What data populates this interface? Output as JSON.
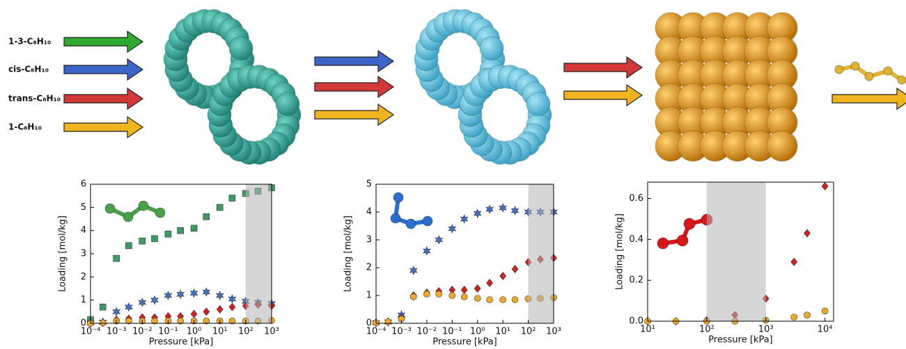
{
  "reactants": [
    "1-3-C₈H₁₀",
    "cis-C₈H₁₀",
    "trans-C₈H₁₀",
    "1-C₈H₁₀"
  ],
  "chart_data": [
    {
      "type": "scatter",
      "xscale": "log",
      "xlabel": "Pressure [kPa]",
      "ylabel": "Loading [mol/kg]",
      "xlim": [
        0.0001,
        1000
      ],
      "ylim": [
        0,
        6
      ],
      "xticks": [
        {
          "value": 0.0001,
          "label": "10⁻⁴"
        },
        {
          "value": 0.001,
          "label": "10⁻³"
        },
        {
          "value": 0.01,
          "label": "10⁻²"
        },
        {
          "value": 0.1,
          "label": "10⁻¹"
        },
        {
          "value": 1,
          "label": "10⁰"
        },
        {
          "value": 10,
          "label": "10¹"
        },
        {
          "value": 100,
          "label": "10²"
        },
        {
          "value": 1000,
          "label": "10³"
        }
      ],
      "yticks": [
        0,
        1,
        2,
        3,
        4,
        5,
        6
      ],
      "shaded_region": [
        100,
        1000
      ],
      "x": [
        0.0001,
        0.0003,
        0.001,
        0.003,
        0.01,
        0.03,
        0.1,
        0.3,
        1,
        3,
        10,
        30,
        100,
        300,
        1000
      ],
      "series": [
        {
          "marker": "square",
          "color": "#3d9b63",
          "values": [
            0.15,
            0.7,
            2.8,
            3.35,
            3.55,
            3.65,
            3.85,
            4.0,
            4.1,
            4.6,
            5.0,
            5.4,
            5.6,
            5.7,
            5.85
          ]
        },
        {
          "marker": "star",
          "color": "#4470c8",
          "values": [
            0.02,
            0.05,
            0.5,
            0.7,
            0.9,
            1.0,
            1.2,
            1.25,
            1.3,
            1.35,
            1.2,
            1.05,
            0.95,
            0.9,
            0.85
          ]
        },
        {
          "marker": "diamond",
          "color": "#d42020",
          "values": [
            0.0,
            0.02,
            0.15,
            0.2,
            0.25,
            0.25,
            0.3,
            0.3,
            0.4,
            0.5,
            0.6,
            0.7,
            0.75,
            0.8,
            0.75
          ]
        },
        {
          "marker": "circle",
          "color": "#f2a92a",
          "values": [
            0.0,
            0.02,
            0.1,
            0.1,
            0.1,
            0.1,
            0.1,
            0.1,
            0.1,
            0.1,
            0.1,
            0.1,
            0.1,
            0.1,
            0.12
          ]
        }
      ]
    },
    {
      "type": "scatter",
      "xscale": "log",
      "xlabel": "Pressure [kPa]",
      "ylabel": "Loading [mol/kg]",
      "xlim": [
        0.0001,
        1000
      ],
      "ylim": [
        0,
        5
      ],
      "xticks": [
        {
          "value": 0.0001,
          "label": "10⁻⁴"
        },
        {
          "value": 0.001,
          "label": "10⁻³"
        },
        {
          "value": 0.01,
          "label": "10⁻²"
        },
        {
          "value": 0.1,
          "label": "10⁻¹"
        },
        {
          "value": 1,
          "label": "10⁰"
        },
        {
          "value": 10,
          "label": "10¹"
        },
        {
          "value": 100,
          "label": "10²"
        },
        {
          "value": 1000,
          "label": "10³"
        }
      ],
      "yticks": [
        0,
        1,
        2,
        3,
        4,
        5
      ],
      "shaded_region": [
        100,
        1000
      ],
      "x": [
        0.0001,
        0.0003,
        0.001,
        0.003,
        0.01,
        0.03,
        0.1,
        0.3,
        1,
        3,
        10,
        30,
        100,
        300,
        1000
      ],
      "series": [
        {
          "marker": "star",
          "color": "#4470c8",
          "values": [
            0.02,
            0.05,
            0.3,
            1.9,
            2.6,
            3.0,
            3.4,
            3.75,
            3.95,
            4.1,
            4.15,
            4.05,
            4.0,
            4.0,
            4.0
          ]
        },
        {
          "marker": "diamond",
          "color": "#d42020",
          "values": [
            0.02,
            0.05,
            0.2,
            1.0,
            1.1,
            1.15,
            1.2,
            1.2,
            1.25,
            1.45,
            1.7,
            1.95,
            2.2,
            2.3,
            2.35
          ]
        },
        {
          "marker": "circle",
          "color": "#f2a92a",
          "values": [
            0.02,
            0.05,
            0.15,
            0.95,
            1.05,
            1.05,
            1.0,
            0.95,
            0.9,
            0.85,
            0.85,
            0.85,
            0.88,
            0.9,
            0.92
          ]
        }
      ]
    },
    {
      "type": "scatter",
      "xscale": "log",
      "xlabel": "Pressure [kPa]",
      "ylabel": "Loading [mol/kg]",
      "xlim": [
        10,
        14000
      ],
      "ylim": [
        0,
        0.68
      ],
      "xticks": [
        {
          "value": 10,
          "label": "10¹"
        },
        {
          "value": 100,
          "label": "10²"
        },
        {
          "value": 1000,
          "label": "10³"
        },
        {
          "value": 10000,
          "label": "10⁴"
        }
      ],
      "yticks": [
        {
          "value": 0,
          "label": "0.0"
        },
        0.2,
        0.4,
        0.6
      ],
      "shaded_region": [
        100,
        1000
      ],
      "x": [
        10,
        30,
        100,
        300,
        1000,
        3000,
        5000,
        10000
      ],
      "series": [
        {
          "marker": "diamond",
          "color": "#d42020",
          "values": [
            0.0,
            0.0,
            0.005,
            0.03,
            0.11,
            0.29,
            0.43,
            0.66
          ]
        },
        {
          "marker": "circle",
          "color": "#f2a92a",
          "values": [
            0.0,
            0.0,
            0.0,
            0.0,
            0.005,
            0.02,
            0.03,
            0.05
          ]
        }
      ]
    }
  ]
}
